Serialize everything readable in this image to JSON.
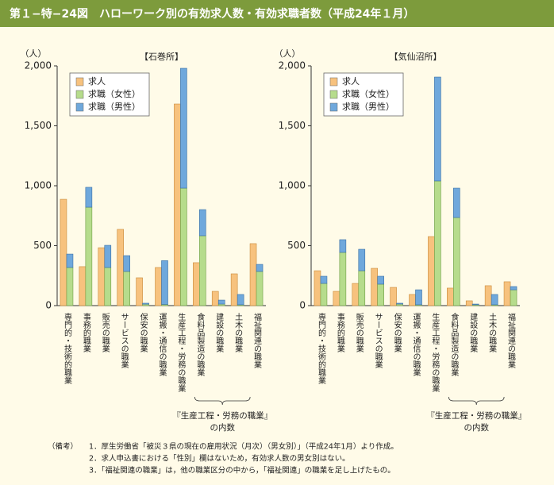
{
  "header": {
    "title": "第１−特−24図　ハローワーク別の有効求人数・有効求職者数（平成24年１月）"
  },
  "chart_data": [
    {
      "type": "bar",
      "title": "【石巻所】",
      "ylabel": "（人）",
      "categories": [
        "専門的・技術的職業",
        "事務的職業",
        "販売の職業",
        "サービスの職業",
        "保安の職業",
        "運搬・通信の職業",
        "生産工程・労務の職業",
        "食料品製造の職業",
        "建設の職業",
        "土木の職業",
        "福祉関連の職業"
      ],
      "series": [
        {
          "name": "求人",
          "color": "#f7c27e",
          "values": [
            887,
            325,
            483,
            636,
            232,
            318,
            1682,
            358,
            119,
            265,
            517
          ]
        },
        {
          "name": "求職（女性）",
          "color": "#b6dc8c",
          "values": [
            318,
            821,
            318,
            285,
            12,
            10,
            980,
            583,
            13,
            7,
            285
          ]
        },
        {
          "name": "求職（男性）",
          "color": "#6fa8dc",
          "values": [
            112,
            166,
            185,
            132,
            8,
            365,
            1000,
            218,
            33,
            86,
            59
          ]
        }
      ],
      "ylim": [
        0,
        2000
      ],
      "yticks": [
        0,
        500,
        {
          "value": 1000,
          "label": "1,000"
        },
        {
          "value": 1500,
          "label": "1,500"
        },
        {
          "value": 2000,
          "label": "2,000"
        }
      ],
      "annotation": [
        "『生産工程・労務の職業』",
        "の内数"
      ]
    },
    {
      "type": "bar",
      "title": "【気仙沼所】",
      "ylabel": "（人）",
      "categories": [
        "専門的・技術的職業",
        "事務的職業",
        "販売の職業",
        "サービスの職業",
        "保安の職業",
        "運搬・通信の職業",
        "生産工程・労務の職業",
        "食料品製造の職業",
        "建設の職業",
        "土木の職業",
        "福祉関連の職業"
      ],
      "series": [
        {
          "name": "求人",
          "color": "#f7c27e",
          "values": [
            291,
            119,
            185,
            311,
            152,
            93,
            576,
            146,
            40,
            166,
            199
          ]
        },
        {
          "name": "求職（女性）",
          "color": "#b6dc8c",
          "values": [
            185,
            444,
            291,
            179,
            13,
            7,
            1040,
            735,
            7,
            7,
            132
          ]
        },
        {
          "name": "求職（男性）",
          "color": "#6fa8dc",
          "values": [
            60,
            106,
            179,
            66,
            7,
            125,
            867,
            245,
            6,
            86,
            27
          ]
        }
      ],
      "ylim": [
        0,
        2000
      ],
      "yticks": [
        0,
        500,
        {
          "value": 1000,
          "label": "1,000"
        },
        {
          "value": 1500,
          "label": "1,500"
        },
        {
          "value": 2000,
          "label": "2,000"
        }
      ],
      "annotation": [
        "『生産工程・労務の職業』",
        "の内数"
      ]
    }
  ],
  "notes": {
    "label": "（備考）",
    "items": [
      "1．厚生労働省「被災３県の現在の雇用状況（月次）（男女別）」（平成24年1月）より作成。",
      "2．求人申込書における「性別」欄はないため，有効求人数の男女別はない。",
      "3．「福祉関連の職業」は，他の職業区分の中から，「福祉関連」の職業を足し上げたもの。"
    ]
  }
}
